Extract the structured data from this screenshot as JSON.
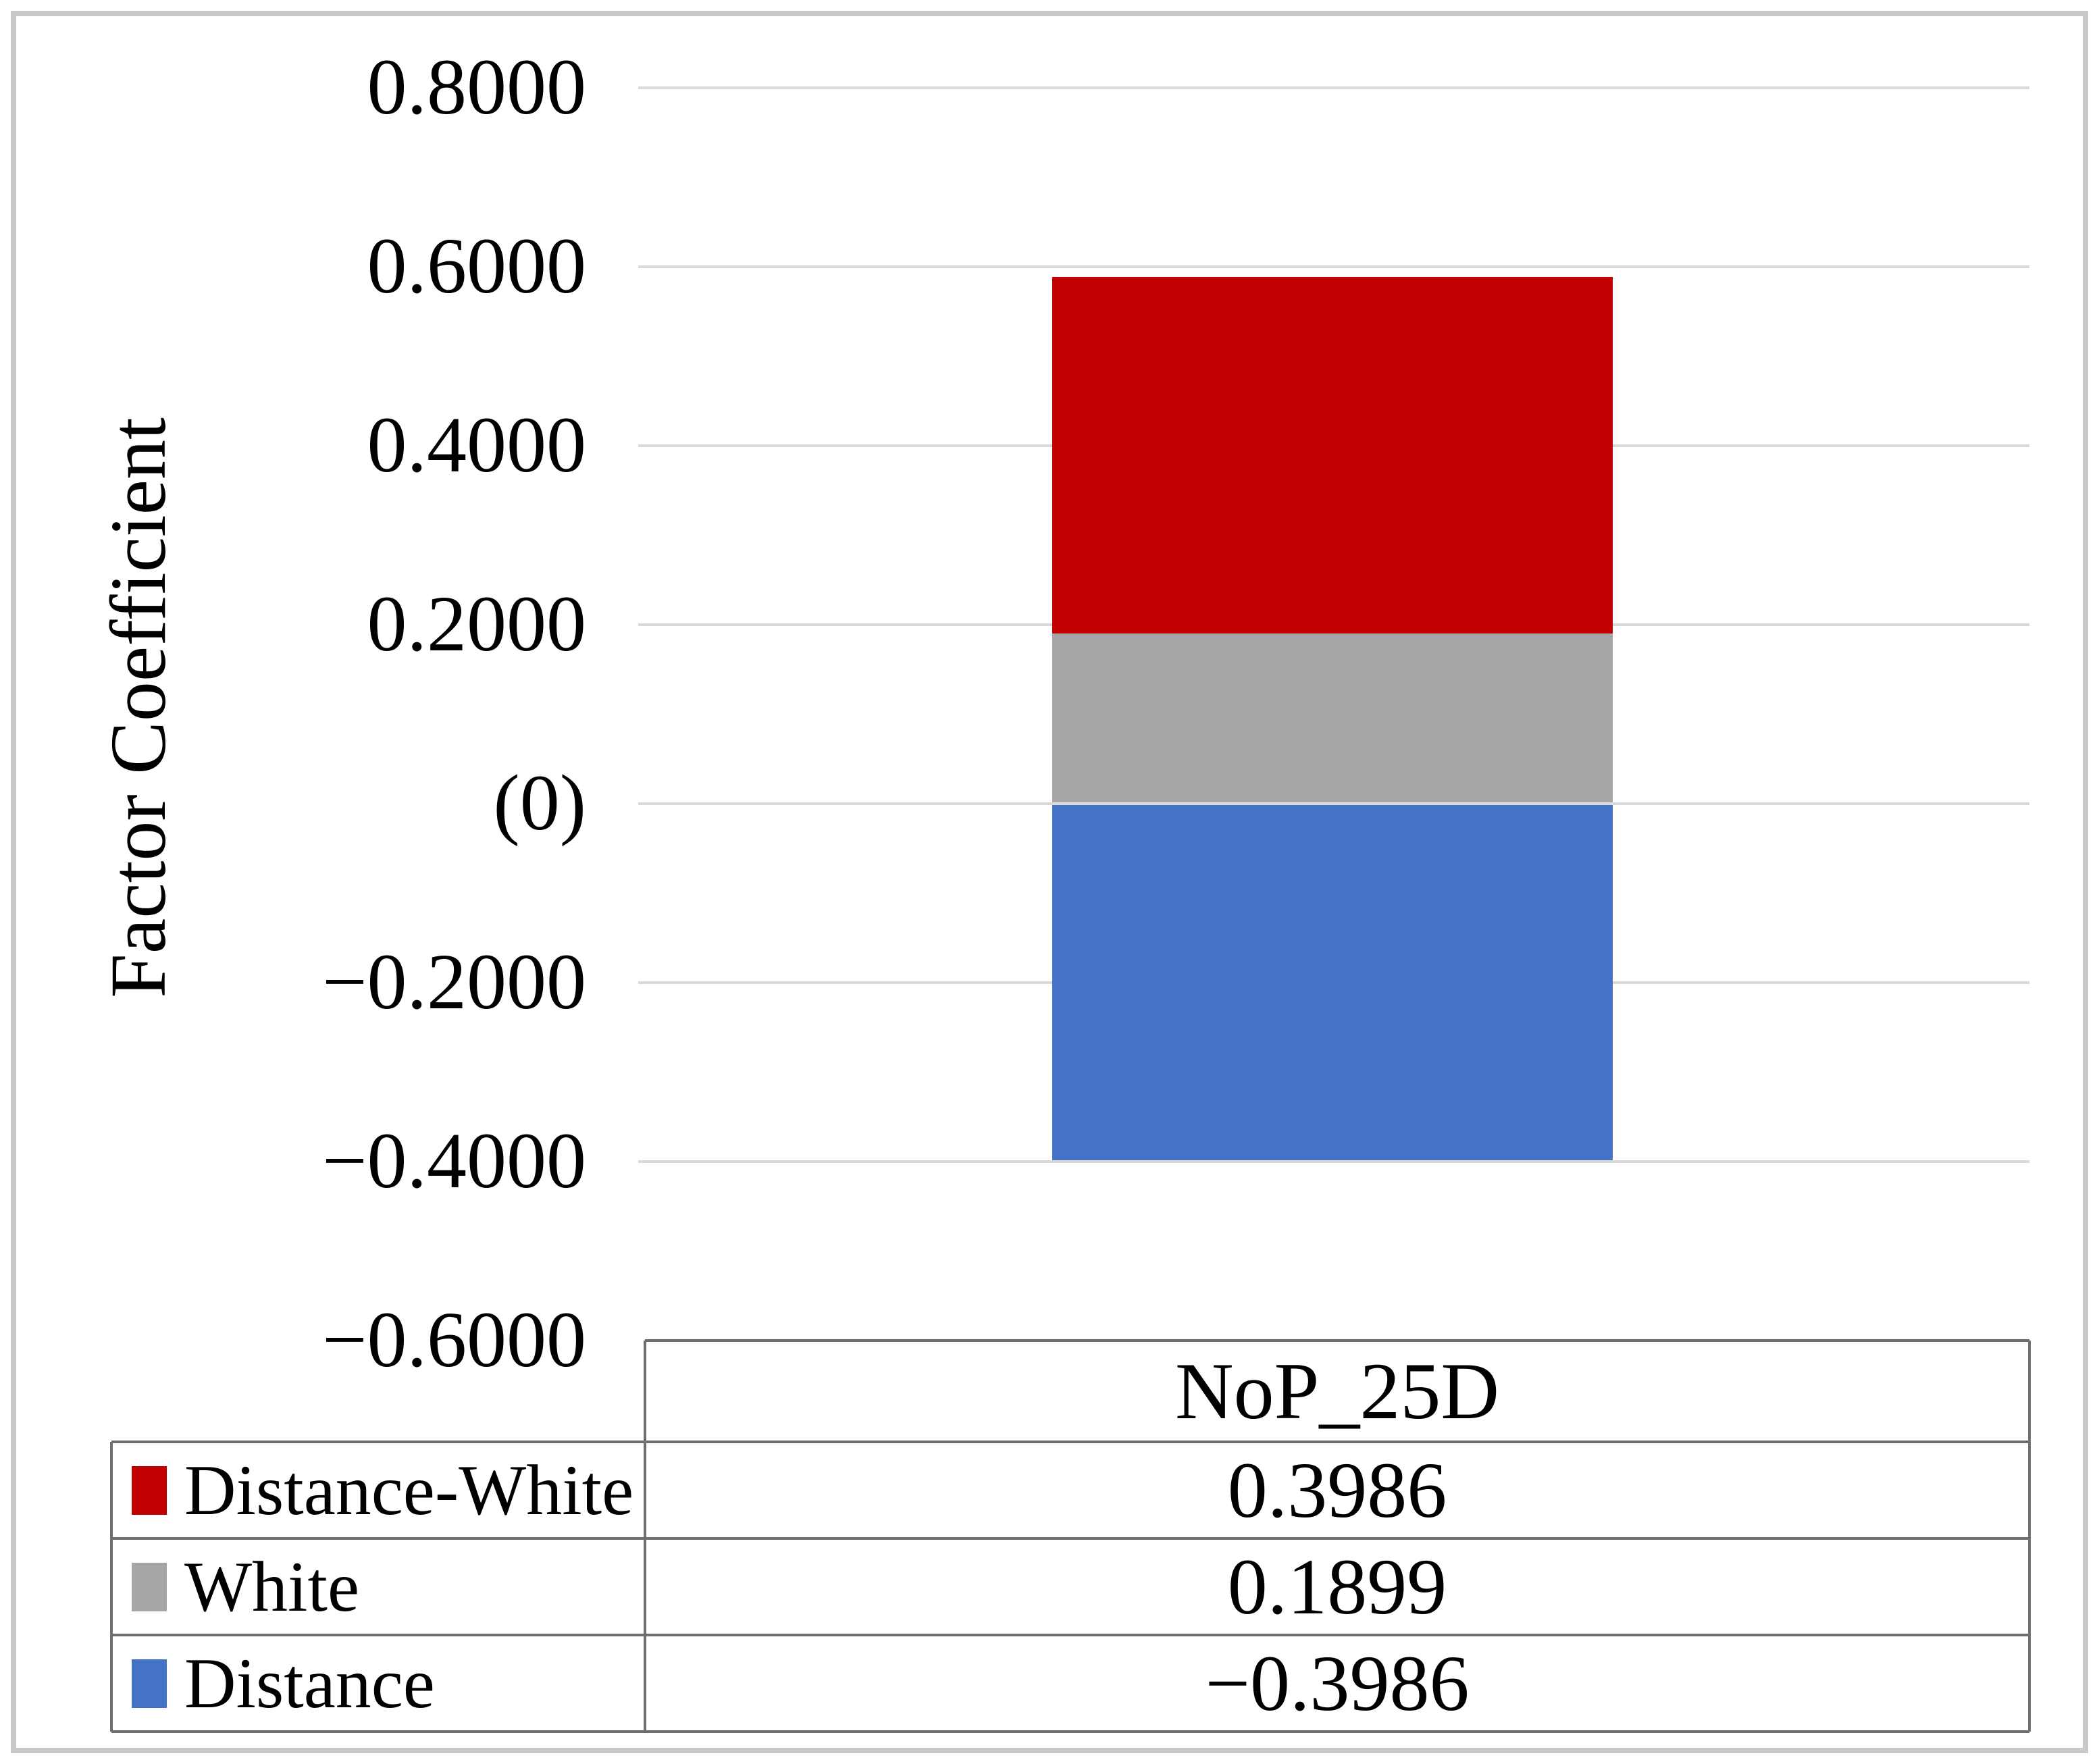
{
  "figure": {
    "type_note": "stacked column chart with data table legend",
    "background": "#ffffff",
    "frame_color": "#c9c9c9"
  },
  "chart_data": {
    "type": "bar",
    "subtype": "stacked-column",
    "title": "",
    "xlabel": "",
    "ylabel": "Factor Coefficient",
    "categories": [
      "NoP_25D"
    ],
    "series": [
      {
        "name": "Distance-White",
        "color": "#c00000",
        "values": [
          0.3986
        ]
      },
      {
        "name": "White",
        "color": "#a6a6a6",
        "values": [
          0.1899
        ]
      },
      {
        "name": "Distance",
        "color": "#4472c4",
        "values": [
          -0.3986
        ]
      }
    ],
    "stack_order_from_zero": [
      "White",
      "Distance-White",
      "Distance"
    ],
    "ylim": [
      -0.6,
      0.8
    ],
    "ytick_step": 0.2,
    "yticks": [
      0.8,
      0.6,
      0.4,
      0.2,
      0,
      -0.2,
      -0.4,
      -0.6
    ],
    "ytick_labels": [
      "0.8000",
      "0.6000",
      "0.4000",
      "0.2000",
      "(0)",
      "−0.2000",
      "−0.4000",
      "−0.6000"
    ],
    "grid": true,
    "gridline_color": "#d9d9d9",
    "legend_position": "data-table-below-left-keys",
    "data_table": {
      "header": "NoP_25D",
      "border_color": "#6e6e6e",
      "rows": [
        {
          "label": "Distance-White",
          "value": "0.3986",
          "color": "#c00000"
        },
        {
          "label": "White",
          "value": "0.1899",
          "color": "#a6a6a6"
        },
        {
          "label": "Distance",
          "value": "−0.3986",
          "color": "#4472c4"
        }
      ]
    }
  }
}
